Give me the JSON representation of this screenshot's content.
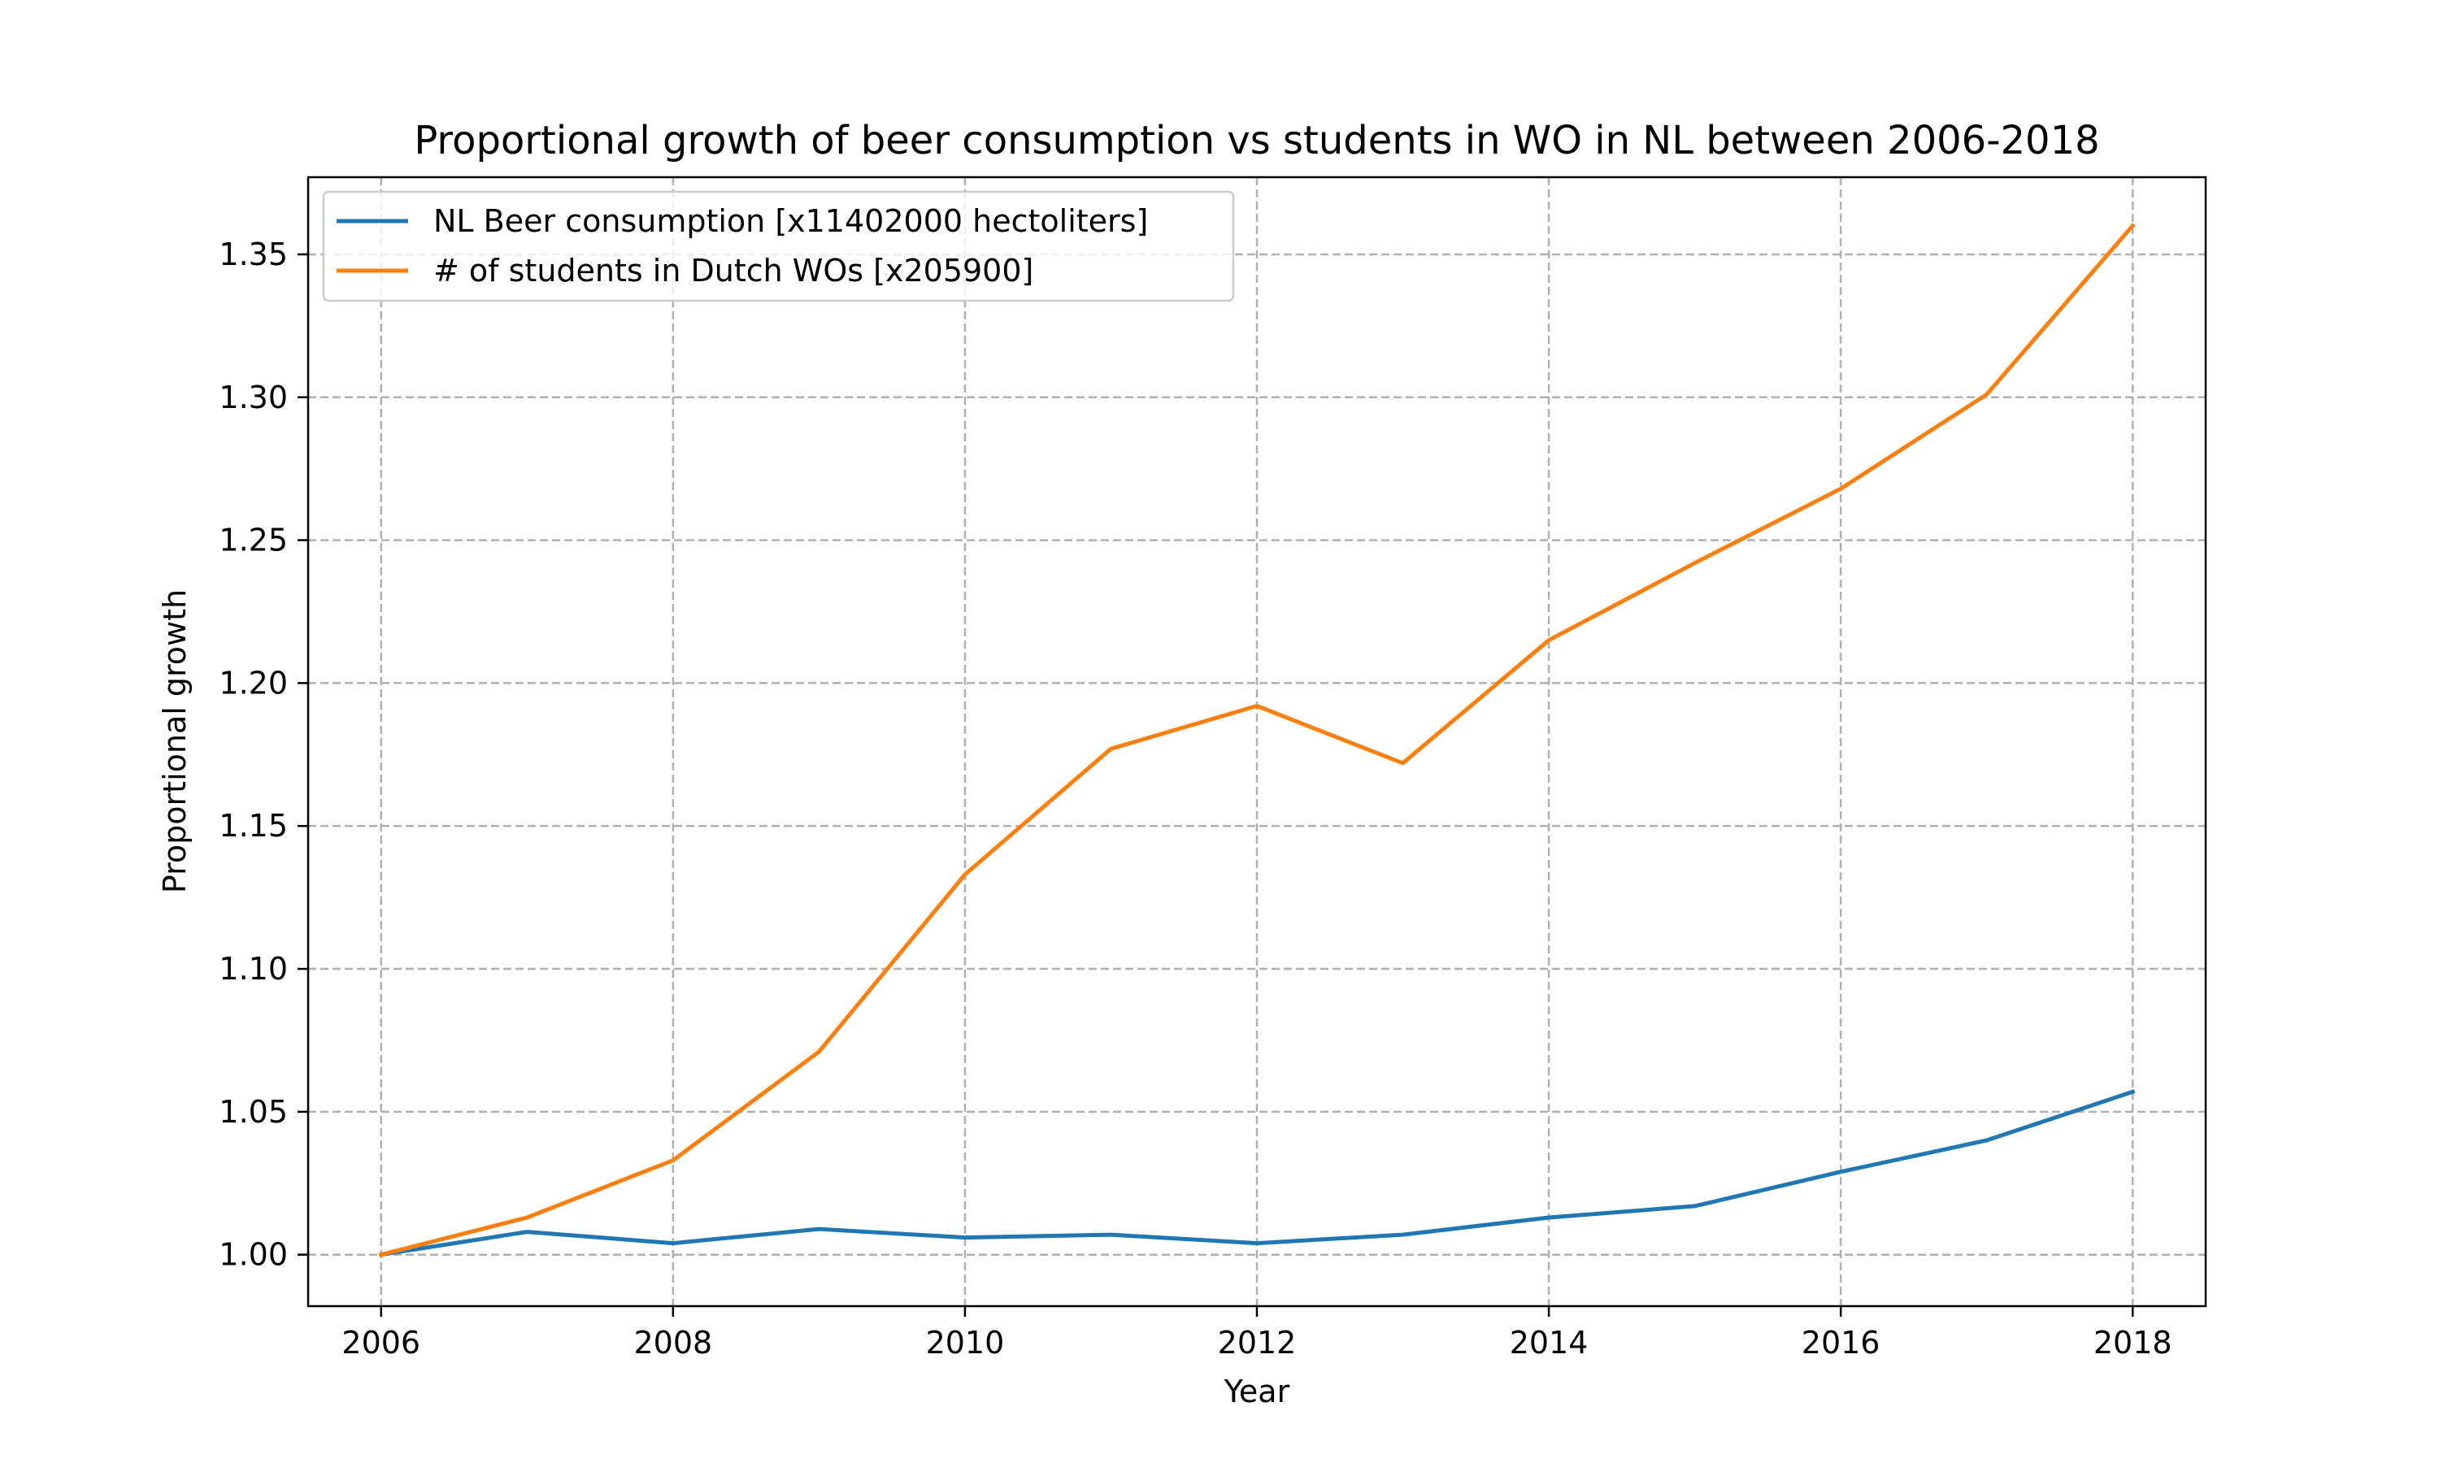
{
  "chart_data": {
    "type": "line",
    "title": "Proportional growth of beer consumption vs students in WO in NL between 2006-2018",
    "xlabel": "Year",
    "ylabel": "Proportional growth",
    "xlim": [
      2005.5,
      2018.5
    ],
    "ylim": [
      0.982,
      1.377
    ],
    "xticks": [
      2006,
      2008,
      2010,
      2012,
      2014,
      2016,
      2018
    ],
    "xtick_labels": [
      "2006",
      "2008",
      "2010",
      "2012",
      "2014",
      "2016",
      "2018"
    ],
    "yticks": [
      1.0,
      1.05,
      1.1,
      1.15,
      1.2,
      1.25,
      1.3,
      1.35
    ],
    "ytick_labels": [
      "1.00",
      "1.05",
      "1.10",
      "1.15",
      "1.20",
      "1.25",
      "1.30",
      "1.35"
    ],
    "grid": true,
    "legend_position": "top-left",
    "x": [
      2006,
      2007,
      2008,
      2009,
      2010,
      2011,
      2012,
      2013,
      2014,
      2015,
      2016,
      2017,
      2018
    ],
    "series": [
      {
        "name": "NL Beer consumption [x11402000 hectoliters]",
        "color": "#1f77b4",
        "values": [
          1.0,
          1.008,
          1.004,
          1.009,
          1.006,
          1.007,
          1.004,
          1.007,
          1.013,
          1.017,
          1.029,
          1.04,
          1.057
        ]
      },
      {
        "name": "# of students in Dutch WOs [x205900]",
        "color": "#ff7f0e",
        "values": [
          1.0,
          1.013,
          1.033,
          1.071,
          1.133,
          1.177,
          1.192,
          1.172,
          1.215,
          1.242,
          1.268,
          1.301,
          1.36
        ]
      }
    ]
  }
}
